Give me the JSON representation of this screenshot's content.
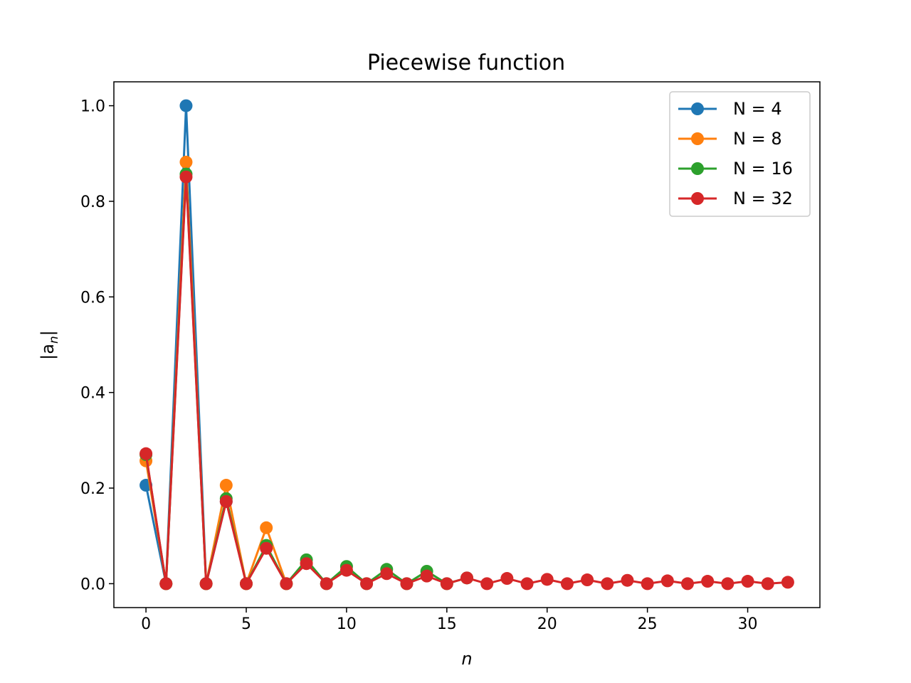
{
  "chart_data": {
    "type": "line",
    "title": "Piecewise function",
    "xlabel": "n",
    "ylabel_base": "|a",
    "ylabel_sub": "n",
    "ylabel_end": "|",
    "xlim": [
      -1.6,
      33.6
    ],
    "ylim": [
      -0.05,
      1.05
    ],
    "xticks": [
      0,
      5,
      10,
      15,
      20,
      25,
      30
    ],
    "yticks": [
      0.0,
      0.2,
      0.4,
      0.6,
      0.8,
      1.0
    ],
    "grid": false,
    "legend_position": "top-right",
    "series": [
      {
        "name": "N = 4",
        "color": "#1f77b4",
        "x": [
          0,
          1,
          2,
          3,
          4
        ],
        "y": [
          0.206,
          0.0,
          1.0,
          0.0,
          0.172
        ]
      },
      {
        "name": "N = 8",
        "color": "#ff7f0e",
        "x": [
          0,
          1,
          2,
          3,
          4,
          5,
          6,
          7,
          8
        ],
        "y": [
          0.257,
          0.0,
          0.882,
          0.0,
          0.206,
          0.0,
          0.117,
          0.0,
          0.043
        ]
      },
      {
        "name": "N = 16",
        "color": "#2ca02c",
        "x": [
          0,
          1,
          2,
          3,
          4,
          5,
          6,
          7,
          8,
          9,
          10,
          11,
          12,
          13,
          14,
          15,
          16
        ],
        "y": [
          0.27,
          0.0,
          0.857,
          0.0,
          0.178,
          0.0,
          0.08,
          0.0,
          0.05,
          0.0,
          0.036,
          0.0,
          0.03,
          0.0,
          0.026,
          0.0,
          0.012
        ]
      },
      {
        "name": "N = 32",
        "color": "#d62728",
        "x": [
          0,
          1,
          2,
          3,
          4,
          5,
          6,
          7,
          8,
          9,
          10,
          11,
          12,
          13,
          14,
          15,
          16,
          17,
          18,
          19,
          20,
          21,
          22,
          23,
          24,
          25,
          26,
          27,
          28,
          29,
          30,
          31,
          32
        ],
        "y": [
          0.272,
          0.0,
          0.851,
          0.0,
          0.172,
          0.0,
          0.074,
          0.0,
          0.042,
          0.0,
          0.028,
          0.0,
          0.021,
          0.0,
          0.016,
          0.0,
          0.012,
          0.0,
          0.011,
          0.0,
          0.009,
          0.0,
          0.008,
          0.0,
          0.007,
          0.0,
          0.006,
          0.0,
          0.005,
          0.0,
          0.005,
          0.0,
          0.003
        ]
      }
    ]
  }
}
